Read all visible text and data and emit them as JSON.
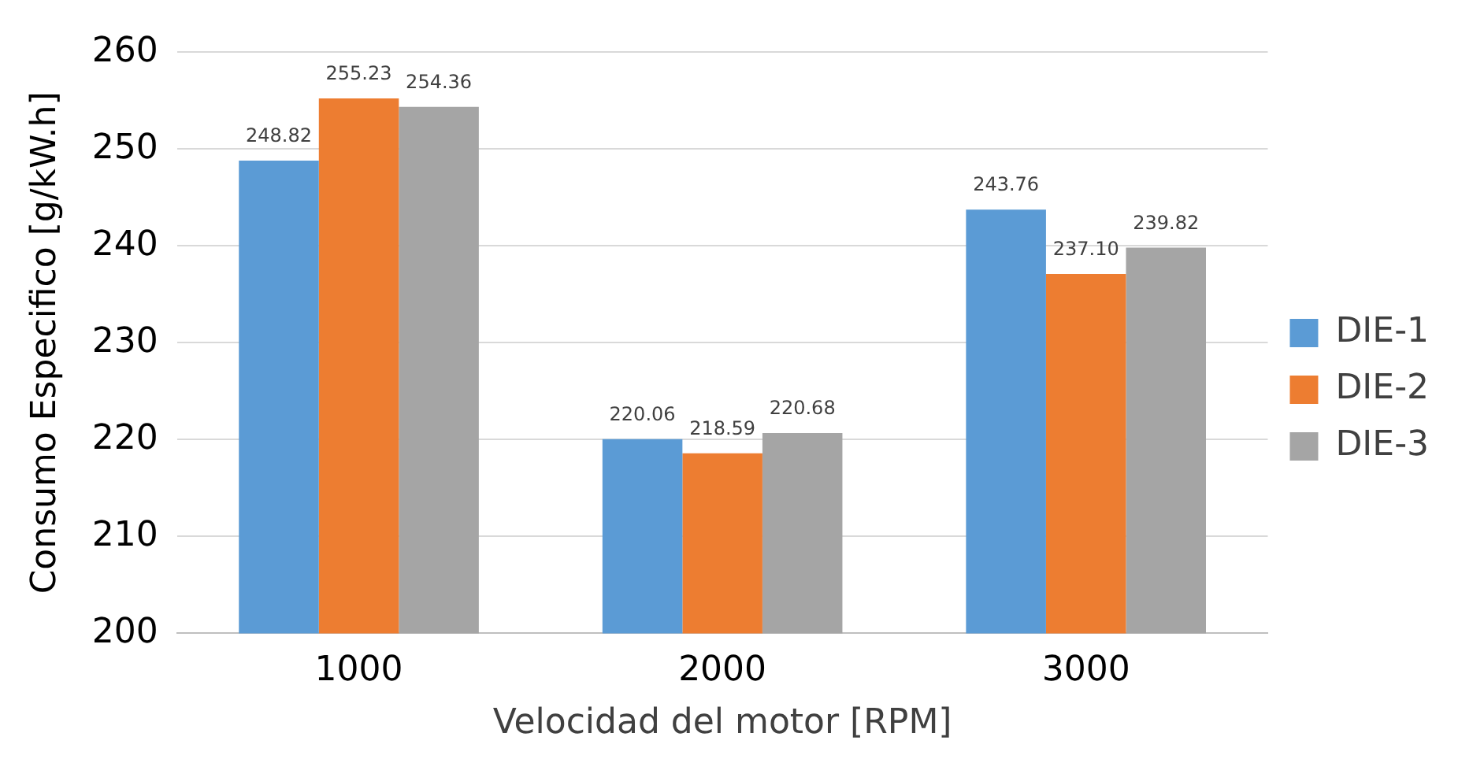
{
  "chart_data": {
    "type": "bar",
    "xlabel": "Velocidad del motor [RPM]",
    "ylabel": "Consumo Especifico [g/kW.h]",
    "categories": [
      "1000",
      "2000",
      "3000"
    ],
    "series": [
      {
        "name": "DIE-1",
        "color": "#5b9bd5",
        "values": [
          248.82,
          220.06,
          243.76
        ],
        "value_labels": [
          "248.82",
          "220.06",
          "243.76"
        ]
      },
      {
        "name": "DIE-2",
        "color": "#ed7d31",
        "values": [
          255.23,
          218.59,
          237.1
        ],
        "value_labels": [
          "255.23",
          "218.59",
          "237.10"
        ]
      },
      {
        "name": "DIE-3",
        "color": "#a5a5a5",
        "values": [
          254.36,
          220.68,
          239.82
        ],
        "value_labels": [
          "254.36",
          "220.68",
          "239.82"
        ]
      }
    ],
    "ylim": [
      200,
      260
    ],
    "yticks": [
      200,
      210,
      220,
      230,
      240,
      250,
      260
    ],
    "grid": "y",
    "legend": "right"
  }
}
